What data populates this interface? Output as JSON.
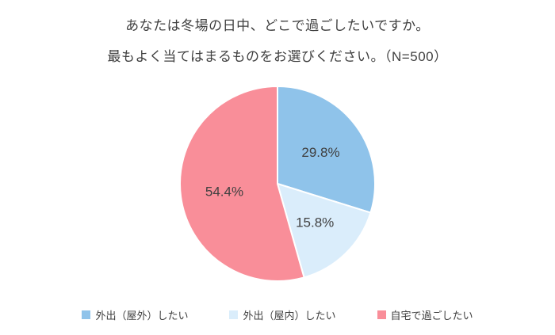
{
  "title": {
    "line1": "あなたは冬場の日中、どこで過ごしたいですか。",
    "line2": "最もよく当てはまるものをお選びください。（N=500）"
  },
  "chart_data": {
    "type": "pie",
    "title": "あなたは冬場の日中、どこで過ごしたいですか。最もよく当てはまるものをお選びください。（N=500）",
    "n": 500,
    "labels": [
      "外出（屋外）したい",
      "外出（屋内）したい",
      "自宅で過ごしたい"
    ],
    "values": [
      29.8,
      15.8,
      54.4
    ],
    "value_labels": [
      "29.8%",
      "15.8%",
      "54.4%"
    ],
    "colors": [
      "#8FC3EA",
      "#DAEDFB",
      "#F98E99"
    ],
    "start_angle_deg": 0,
    "direction": "clockwise",
    "legend_position": "bottom",
    "label_color": "#404040",
    "slice_border_color": "#ffffff"
  }
}
